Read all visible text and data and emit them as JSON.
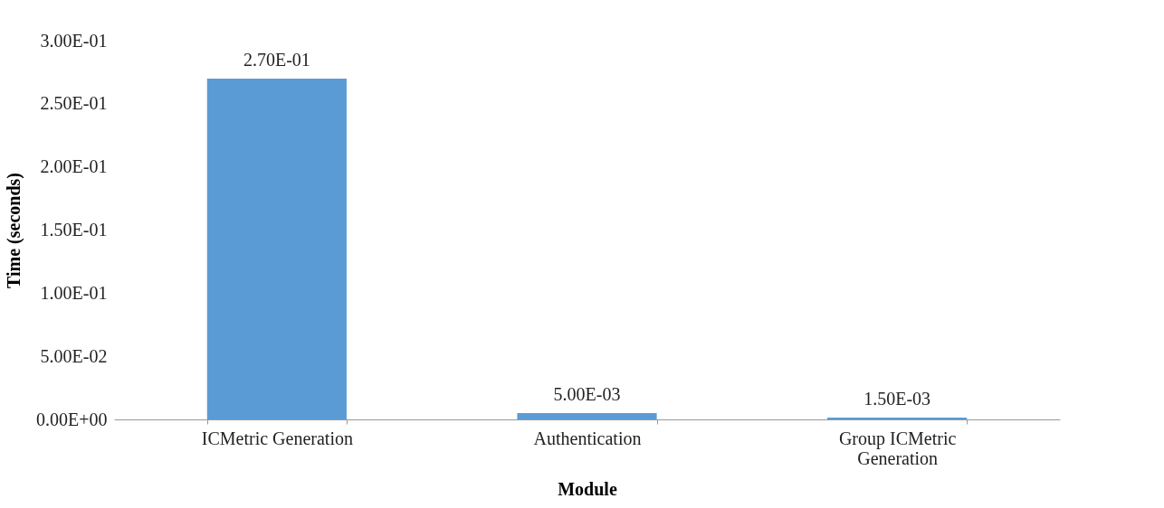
{
  "chart_data": {
    "type": "bar",
    "xlabel": "Module",
    "ylabel": "Time (seconds)",
    "categories": [
      "ICMetric Generation",
      "Authentication",
      "Group ICMetric Generation"
    ],
    "values": [
      0.27,
      0.005,
      0.0015
    ],
    "value_labels": [
      "2.70E-01",
      "5.00E-03",
      "1.50E-03"
    ],
    "color": "#5b9bd5",
    "ylim": [
      0,
      0.3
    ],
    "yticks": [
      {
        "value": 0,
        "label": "0.00E+00"
      },
      {
        "value": 0.05,
        "label": "5.00E-02"
      },
      {
        "value": 0.1,
        "label": "1.00E-01"
      },
      {
        "value": 0.15,
        "label": "1.50E-01"
      },
      {
        "value": 0.2,
        "label": "2.00E-01"
      },
      {
        "value": 0.25,
        "label": "2.50E-01"
      },
      {
        "value": 0.3,
        "label": "3.00E-01"
      }
    ],
    "grid": false
  }
}
